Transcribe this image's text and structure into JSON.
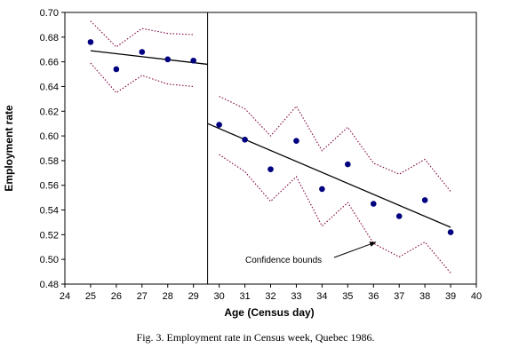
{
  "chart_data": {
    "type": "scatter",
    "xlabel": "Age (Census day)",
    "ylabel": "Employment rate",
    "xlim": [
      24,
      40
    ],
    "ylim": [
      0.48,
      0.7
    ],
    "xticks": [
      "24",
      "25",
      "26",
      "27",
      "28",
      "29",
      "30",
      "31",
      "32",
      "33",
      "34",
      "35",
      "36",
      "37",
      "38",
      "39",
      "40"
    ],
    "yticks": [
      "0.48",
      "0.50",
      "0.52",
      "0.54",
      "0.56",
      "0.58",
      "0.60",
      "0.62",
      "0.64",
      "0.66",
      "0.68",
      "0.70"
    ],
    "grid": false,
    "discontinuity_x": 29.55,
    "series": [
      {
        "role": "observed",
        "color": "#000080",
        "x": [
          25,
          26,
          27,
          28,
          29,
          30,
          31,
          32,
          33,
          34,
          35,
          36,
          37,
          38,
          39
        ],
        "y": [
          0.676,
          0.654,
          0.668,
          0.662,
          0.661,
          0.609,
          0.597,
          0.573,
          0.596,
          0.557,
          0.577,
          0.545,
          0.535,
          0.548,
          0.522
        ]
      },
      {
        "role": "fit-left",
        "color": "#000000",
        "x": [
          25,
          29.55
        ],
        "y": [
          0.669,
          0.658
        ]
      },
      {
        "role": "fit-right",
        "color": "#000000",
        "x": [
          29.55,
          39
        ],
        "y": [
          0.61,
          0.526
        ]
      },
      {
        "role": "upper-bound-left",
        "color": "#800040",
        "x": [
          25,
          26,
          27,
          28,
          29
        ],
        "y": [
          0.693,
          0.672,
          0.687,
          0.683,
          0.682
        ]
      },
      {
        "role": "lower-bound-left",
        "color": "#800040",
        "x": [
          25,
          26,
          27,
          28,
          29
        ],
        "y": [
          0.659,
          0.635,
          0.649,
          0.642,
          0.64
        ]
      },
      {
        "role": "upper-bound-right",
        "color": "#800040",
        "x": [
          30,
          31,
          32,
          33,
          34,
          35,
          36,
          37,
          38,
          39
        ],
        "y": [
          0.632,
          0.622,
          0.6,
          0.624,
          0.588,
          0.607,
          0.578,
          0.569,
          0.581,
          0.555
        ]
      },
      {
        "role": "lower-bound-right",
        "color": "#800040",
        "x": [
          30,
          31,
          32,
          33,
          34,
          35,
          36,
          37,
          38,
          39
        ],
        "y": [
          0.585,
          0.571,
          0.547,
          0.567,
          0.527,
          0.546,
          0.513,
          0.502,
          0.514,
          0.489
        ]
      }
    ],
    "annotation": {
      "text": "Confidence bounds",
      "arrow_to": [
        36.1,
        0.514
      ]
    }
  },
  "caption": "Fig. 3.  Employment rate in Census week, Quebec 1986."
}
